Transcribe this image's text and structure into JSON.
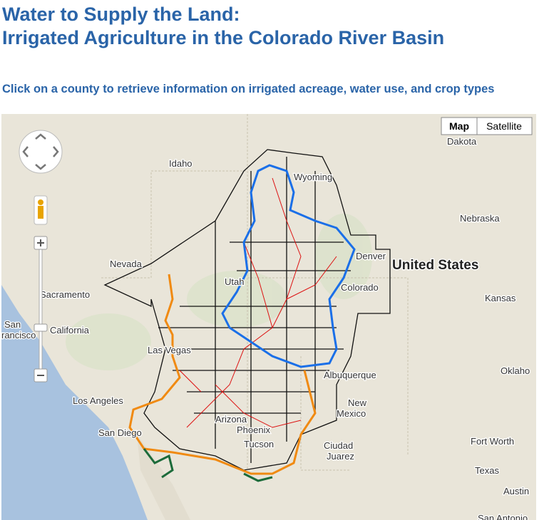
{
  "header": {
    "title_lines": [
      "Water to Supply the Land:",
      "Irrigated Agriculture in the Colorado River Basin"
    ],
    "instruction": "Click on a county to retrieve information on irrigated acreage, water use, and crop types"
  },
  "map": {
    "buttons": [
      "Map",
      "Satellite"
    ],
    "labels": [
      {
        "text": "Dakota",
        "big": false
      },
      {
        "text": "Idaho",
        "big": false
      },
      {
        "text": "Wyoming",
        "big": false
      },
      {
        "text": "Nebraska",
        "big": false
      },
      {
        "text": "Nevada",
        "big": false
      },
      {
        "text": "United States",
        "big": true
      },
      {
        "text": "Denver",
        "big": false
      },
      {
        "text": "Utah",
        "big": false
      },
      {
        "text": "Colorado",
        "big": false
      },
      {
        "text": "Kansas",
        "big": false
      },
      {
        "text": "Sacramento",
        "big": false
      },
      {
        "text": "San",
        "big": false
      },
      {
        "text": "rancisco",
        "big": false
      },
      {
        "text": "California",
        "big": false
      },
      {
        "text": "Las Vegas",
        "big": false
      },
      {
        "text": "Albuquerque",
        "big": false
      },
      {
        "text": "Oklaho",
        "big": false
      },
      {
        "text": "Los Angeles",
        "big": false
      },
      {
        "text": "New",
        "big": false
      },
      {
        "text": "Mexico",
        "big": false
      },
      {
        "text": "San Diego",
        "big": false
      },
      {
        "text": "Arizona",
        "big": false
      },
      {
        "text": "Phoenix",
        "big": false
      },
      {
        "text": "Tucson",
        "big": false
      },
      {
        "text": "Ciudad",
        "big": false
      },
      {
        "text": "Juarez",
        "big": false
      },
      {
        "text": "Fort Worth",
        "big": false
      },
      {
        "text": "Texas",
        "big": false
      },
      {
        "text": "Austin",
        "big": false
      },
      {
        "text": "San Antonio",
        "big": false
      }
    ]
  }
}
